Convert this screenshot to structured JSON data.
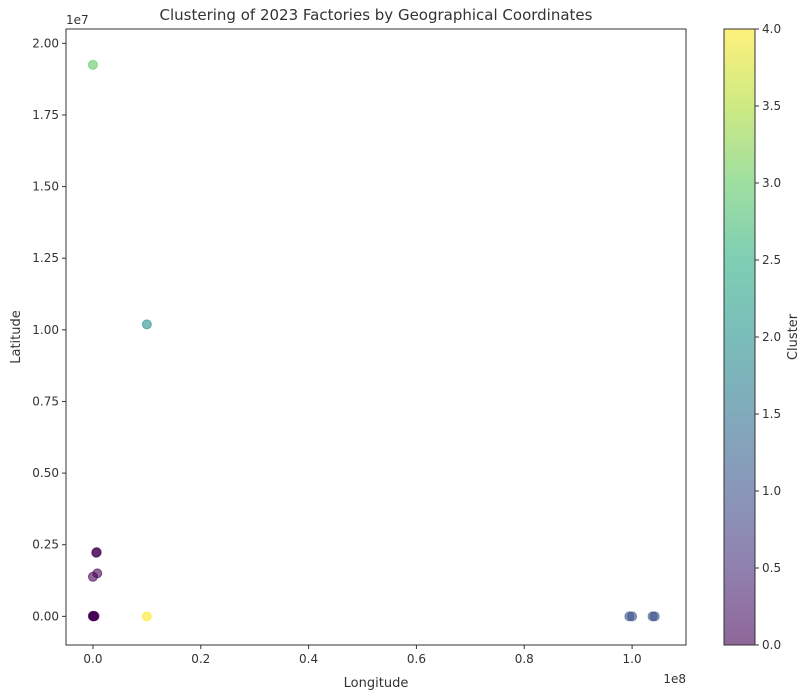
{
  "chart_data": {
    "type": "scatter",
    "title": "Clustering of 2023 Factories by Geographical Coordinates",
    "xlabel": "Longitude",
    "ylabel": "Latitude",
    "x_offset_label": "1e8",
    "y_offset_label": "1e7",
    "xlim": [
      -0.05,
      1.1
    ],
    "ylim": [
      -0.1,
      2.05
    ],
    "xticks": [
      "0.0",
      "0.2",
      "0.4",
      "0.6",
      "0.8",
      "1.0"
    ],
    "xtick_values": [
      0.0,
      0.2,
      0.4,
      0.6,
      0.8,
      1.0
    ],
    "yticks": [
      "0.00",
      "0.25",
      "0.50",
      "0.75",
      "1.00",
      "1.25",
      "1.50",
      "1.75",
      "2.00"
    ],
    "ytick_values": [
      0.0,
      0.25,
      0.5,
      0.75,
      1.0,
      1.25,
      1.5,
      1.75,
      2.0
    ],
    "colorbar": {
      "label": "Cluster",
      "range": [
        0.0,
        4.0
      ],
      "ticks": [
        "0.0",
        "0.5",
        "1.0",
        "1.5",
        "2.0",
        "2.5",
        "3.0",
        "3.5",
        "4.0"
      ],
      "tick_values": [
        0.0,
        0.5,
        1.0,
        1.5,
        2.0,
        2.5,
        3.0,
        3.5,
        4.0
      ],
      "colormap": "viridis"
    },
    "point_alpha": 0.6,
    "points": [
      {
        "x": 0.0,
        "y": 0.0,
        "cluster": 0
      },
      {
        "x": 0.001,
        "y": 0.001,
        "cluster": 0
      },
      {
        "x": 0.002,
        "y": 0.0,
        "cluster": 0
      },
      {
        "x": 0.0,
        "y": 0.002,
        "cluster": 0
      },
      {
        "x": 0.003,
        "y": 0.001,
        "cluster": 0
      },
      {
        "x": 0.006,
        "y": 0.222,
        "cluster": 0
      },
      {
        "x": 0.007,
        "y": 0.224,
        "cluster": 0
      },
      {
        "x": 0.008,
        "y": 0.15,
        "cluster": 0
      },
      {
        "x": 0.0,
        "y": 0.138,
        "cluster": 0
      },
      {
        "x": 0.995,
        "y": 0.0,
        "cluster": 1
      },
      {
        "x": 1.0,
        "y": 0.0,
        "cluster": 1
      },
      {
        "x": 1.038,
        "y": 0.0,
        "cluster": 1
      },
      {
        "x": 1.042,
        "y": 0.0,
        "cluster": 1
      },
      {
        "x": 0.1,
        "y": 1.019,
        "cluster": 2
      },
      {
        "x": 0.0,
        "y": 1.925,
        "cluster": 3
      },
      {
        "x": 0.1,
        "y": 0.0,
        "cluster": 4
      }
    ]
  }
}
